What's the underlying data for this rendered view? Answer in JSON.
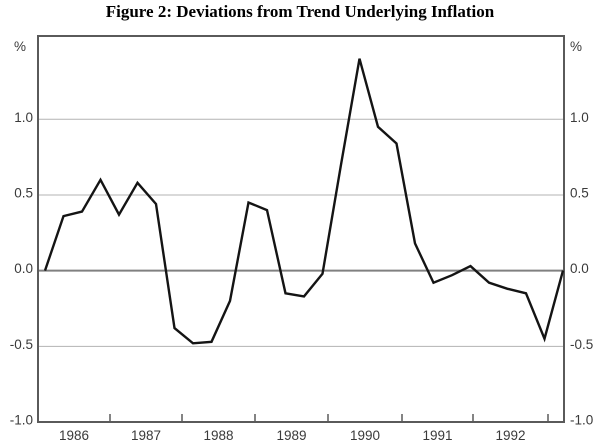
{
  "title": "Figure 2: Deviations from Trend Underlying Inflation",
  "chart_data": {
    "type": "line",
    "title": "Figure 2: Deviations from Trend Underlying Inflation",
    "series_name": "deviation-from-trend-underlying-inflation",
    "unit_label_left": "%",
    "unit_label_right": "%",
    "x": [
      "1986Q1",
      "1986Q2",
      "1986Q3",
      "1986Q4",
      "1987Q1",
      "1987Q2",
      "1987Q3",
      "1987Q4",
      "1988Q1",
      "1988Q2",
      "1988Q3",
      "1988Q4",
      "1989Q1",
      "1989Q2",
      "1989Q3",
      "1989Q4",
      "1990Q1",
      "1990Q2",
      "1990Q3",
      "1990Q4",
      "1991Q1",
      "1991Q2",
      "1991Q3",
      "1991Q4",
      "1992Q1",
      "1992Q2",
      "1992Q3",
      "1992Q4",
      "1993Q1"
    ],
    "values": [
      0.0,
      0.36,
      0.39,
      0.6,
      0.37,
      0.58,
      0.44,
      -0.38,
      -0.48,
      -0.47,
      -0.2,
      0.45,
      0.4,
      -0.15,
      -0.17,
      -0.02,
      0.7,
      1.4,
      0.95,
      0.84,
      0.18,
      -0.08,
      -0.03,
      0.03,
      -0.08,
      -0.12,
      -0.15,
      -0.45,
      0.0
    ],
    "x_tick_labels": [
      "1986",
      "1987",
      "1988",
      "1989",
      "1990",
      "1991",
      "1992"
    ],
    "y_tick_labels": [
      "1.0",
      "0.5",
      "0.0",
      "-0.5",
      "-1.0"
    ],
    "y_tick_values": [
      1.0,
      0.5,
      0.0,
      -0.5,
      -1.0
    ],
    "ylim": [
      -1.0,
      1.55
    ],
    "grid": "horizontal",
    "zero_line": true,
    "legend": "none",
    "colors": {
      "line": "#141414",
      "frame": "#5a5a5a",
      "gridline": "#b3b3b3",
      "zero_line": "#808080",
      "tick_label": "#3a3a3a",
      "title": "#000000",
      "background": "#ffffff"
    }
  }
}
